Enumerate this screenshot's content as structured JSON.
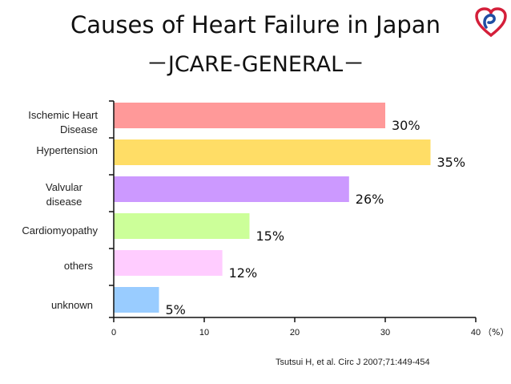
{
  "title": {
    "line1": "Causes of Heart Failure in Japan",
    "line2": "－JCARE-GENERAL－"
  },
  "logo": {
    "icon": "heart-logo-icon"
  },
  "chart_data": {
    "type": "bar",
    "orientation": "horizontal",
    "title": "Causes of Heart Failure in Japan －JCARE-GENERAL－",
    "categories": [
      [
        "Ischemic Heart",
        "Disease"
      ],
      [
        "Hypertension"
      ],
      [
        "Valvular",
        "disease"
      ],
      [
        "Cardiomyopathy"
      ],
      [
        "others"
      ],
      [
        "unknown"
      ]
    ],
    "values": [
      30,
      35,
      26,
      15,
      12,
      5
    ],
    "data_labels": [
      "30%",
      "35%",
      "26%",
      "15%",
      "12%",
      "5%"
    ],
    "colors": [
      "#ff9999",
      "#ffdd66",
      "#cc99ff",
      "#ccff99",
      "#ffccff",
      "#99ccff"
    ],
    "xlim": [
      0,
      40
    ],
    "xticks": [
      "0",
      "10",
      "20",
      "30",
      "40"
    ],
    "xunit": "（%）",
    "grid": false,
    "legend": "none"
  },
  "citation": "Tsutsui H, et al. Circ J 2007;71:449-454"
}
